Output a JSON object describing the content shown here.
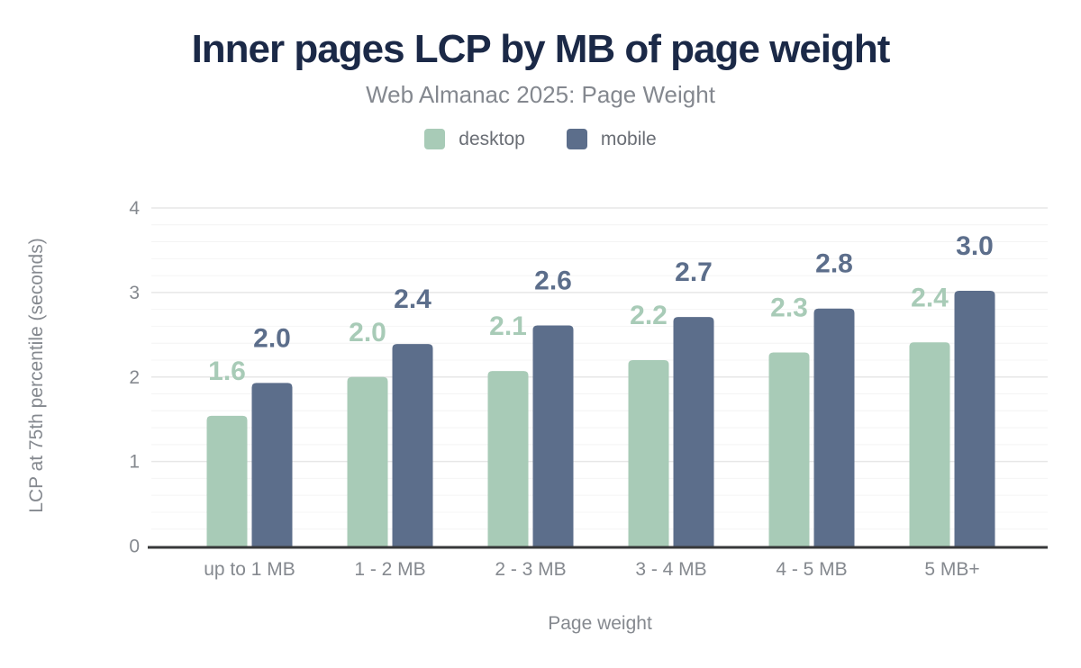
{
  "chart_data": {
    "type": "bar",
    "title": "Inner pages LCP by MB of page weight",
    "subtitle": "Web Almanac 2025: Page Weight",
    "xlabel": "Page weight",
    "ylabel": "LCP at 75th percentile (seconds)",
    "categories": [
      "up to 1 MB",
      "1 - 2 MB",
      "2 - 3 MB",
      "3 - 4 MB",
      "4 - 5 MB",
      "5 MB+"
    ],
    "series": [
      {
        "name": "desktop",
        "color": "#a8cbb7",
        "values": [
          1.6,
          2.0,
          2.1,
          2.2,
          2.3,
          2.4
        ],
        "labels": [
          "1.6",
          "2.0",
          "2.1",
          "2.2",
          "2.3",
          "2.4"
        ],
        "bar_heights": [
          1.54,
          2.0,
          2.07,
          2.2,
          2.29,
          2.41
        ]
      },
      {
        "name": "mobile",
        "color": "#5c6e8b",
        "values": [
          2.0,
          2.4,
          2.6,
          2.7,
          2.8,
          3.0
        ],
        "labels": [
          "2.0",
          "2.4",
          "2.6",
          "2.7",
          "2.8",
          "3.0"
        ],
        "bar_heights": [
          1.93,
          2.39,
          2.61,
          2.71,
          2.81,
          3.02
        ]
      }
    ],
    "ylim": [
      0,
      4
    ],
    "yticks": [
      0,
      1,
      2,
      3,
      4
    ],
    "minor_tick_step": 0.2,
    "grid": true,
    "legend_position": "top"
  },
  "colors": {
    "title": "#1b2947",
    "subtitle": "#84888f",
    "axis_text": "#85898f",
    "legend_text": "#6a6e75",
    "grid_major": "#e7e7e7",
    "grid_minor": "#f4f4f4",
    "baseline": "#37383a",
    "desktop": "#a8cbb7",
    "mobile": "#5c6e8b",
    "background": "#ffffff"
  }
}
